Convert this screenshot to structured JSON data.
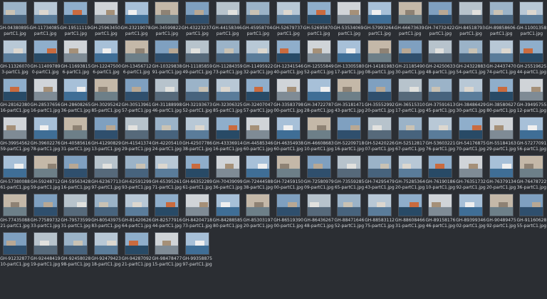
{
  "files": [
    {
      "line1": "GH-04380895-",
      "line2": "partC1.jpg"
    },
    {
      "line1": "GH-11734085-",
      "line2": "partC1.jpg"
    },
    {
      "line1": "GH-19511119-",
      "line2": "partC1.jpg"
    },
    {
      "line1": "GH-25963450-",
      "line2": "partC1.jpg"
    },
    {
      "line1": "GH-23219078-",
      "line2": "partC1.jpg"
    },
    {
      "line1": "GH-34599822-",
      "line2": "partC1.jpg"
    },
    {
      "line1": "GH-43223237-",
      "line2": "partC1.jpg"
    },
    {
      "line1": "GH-44158346-",
      "line2": "partC1.jpg"
    },
    {
      "line1": "GH-45958704-",
      "line2": "partC1.jpg"
    },
    {
      "line1": "GH-52679737-",
      "line2": "partC1.jpg"
    },
    {
      "line1": "GH-52695870-",
      "line2": "partC1.jpg"
    },
    {
      "line1": "GH-53534069-",
      "line2": "partC1.jpg"
    },
    {
      "line1": "GH-57993264-",
      "line2": "partC1.jpg"
    },
    {
      "line1": "GH-66673639-",
      "line2": "partC1.jpg"
    },
    {
      "line1": "GH-74732422-",
      "line2": "partC1.jpg"
    },
    {
      "line1": "GH-84518793-",
      "line2": "partC1.jpg"
    },
    {
      "line1": "GH-89858606-",
      "line2": "partC1.jpg"
    },
    {
      "line1": "GH-11001358",
      "line2": "partC1.jpg"
    },
    {
      "line1": "GH-11326070",
      "line2": "3-partC1.jpg"
    },
    {
      "line1": "GH-11409789",
      "line2": "0-partC1.jpg"
    },
    {
      "line1": "GH-11693815",
      "line2": "6-partC1.jpg"
    },
    {
      "line1": "GH-12247500",
      "line2": "6-partC1.jpg"
    },
    {
      "line1": "GH-13456712",
      "line2": "6-partC1.jpg"
    },
    {
      "line1": "GH-10329838",
      "line2": "91-partC1.jpg"
    },
    {
      "line1": "GH-11185859",
      "line2": "49-partC1.jpg"
    },
    {
      "line1": "GH-11284359",
      "line2": "73-partC1.jpg"
    },
    {
      "line1": "GH-11495922",
      "line2": "32-partC1.jpg"
    },
    {
      "line1": "GH-12341546",
      "line2": "40-partC1.jpg"
    },
    {
      "line1": "GH-12555849",
      "line2": "52-partC1.jpg"
    },
    {
      "line1": "GH-13305580",
      "line2": "17-partC1.jpg"
    },
    {
      "line1": "GH-14181983",
      "line2": "08-partC1.jpg"
    },
    {
      "line1": "GH-21185490",
      "line2": "30-partC1.jpg"
    },
    {
      "line1": "GH-24250633",
      "line2": "48-partC1.jpg"
    },
    {
      "line1": "GH-24322883",
      "line2": "54-partC1.jpg"
    },
    {
      "line1": "GH-24437470",
      "line2": "74-partC1.jpg"
    },
    {
      "line1": "GH-25519625",
      "line2": "44-partC1.jpg"
    },
    {
      "line1": "GH-28162380",
      "line2": "16-partC1.jpg"
    },
    {
      "line1": "GH-28537656",
      "line2": "16-partC1.jpg"
    },
    {
      "line1": "GH-28608265",
      "line2": "36-partC1.jpg"
    },
    {
      "line1": "GH-30295242",
      "line2": "85-partC1.jpg"
    },
    {
      "line1": "GH-30513961",
      "line2": "57-partC1.jpg"
    },
    {
      "line1": "GH-31188998",
      "line2": "46-partC1.jpg"
    },
    {
      "line1": "GH-32193673",
      "line2": "52-partC1.jpg"
    },
    {
      "line1": "GH-32306325",
      "line2": "85-partC1.jpg"
    },
    {
      "line1": "GH-32407047",
      "line2": "57-partC1.jpg"
    },
    {
      "line1": "GH-33583798",
      "line2": "00-partC1.jpg"
    },
    {
      "line1": "GH-34722787",
      "line2": "28-partC1.jpg"
    },
    {
      "line1": "GH-35181471",
      "line2": "43-partC1.jpg"
    },
    {
      "line1": "GH-35552992",
      "line2": "20-partC1.jpg"
    },
    {
      "line1": "GH-36515310",
      "line2": "17-partC1.jpg"
    },
    {
      "line1": "GH-37591613",
      "line2": "45-partC1.jpg"
    },
    {
      "line1": "GH-38486429",
      "line2": "30-partC1.jpg"
    },
    {
      "line1": "GH-38580627",
      "line2": "80-partC1.jpg"
    },
    {
      "line1": "GH-39495755",
      "line2": "12-partC1.jpg"
    },
    {
      "line1": "GH-39954562",
      "line2": "59-partC1.jpg"
    },
    {
      "line1": "GH-39602276",
      "line2": "78-partC1.jpg"
    },
    {
      "line1": "GH-40585616",
      "line2": "31-partC1.jpg"
    },
    {
      "line1": "GH-41290829",
      "line2": "13-partC1.jpg"
    },
    {
      "line1": "GH-41541374",
      "line2": "29-partC1.jpg"
    },
    {
      "line1": "GH-42205410",
      "line2": "24-partC1.jpg"
    },
    {
      "line1": "GH-42507786",
      "line2": "38-partC1.jpg"
    },
    {
      "line1": "GH-43336914",
      "line2": "16-partC1.jpg"
    },
    {
      "line1": "GH-44585346",
      "line2": "60-partC1.jpg"
    },
    {
      "line1": "GH-46354938",
      "line2": "60-partC1.jpg"
    },
    {
      "line1": "GH-46608683",
      "line2": "10-partC1.jpg"
    },
    {
      "line1": "GH-52209718",
      "line2": "16-partC1.jpg"
    },
    {
      "line1": "GH-52420226",
      "line2": "07-partC1.jpg"
    },
    {
      "line1": "GH-52512817",
      "line2": "67-partC1.jpg"
    },
    {
      "line1": "GH-53603221",
      "line2": "76-partC1.jpg"
    },
    {
      "line1": "GH-54176875",
      "line2": "70-partC1.jpg"
    },
    {
      "line1": "GH-55184163",
      "line2": "29-partC1.jpg"
    },
    {
      "line1": "GH-57277091",
      "line2": "56-partC1.jpg"
    },
    {
      "line1": "GH-57380088",
      "line2": "61-partC1.jpg"
    },
    {
      "line1": "GH-59248712",
      "line2": "59-partC1.jpg"
    },
    {
      "line1": "GH-59563428",
      "line2": "16-partC1.jpg"
    },
    {
      "line1": "GH-62367713",
      "line2": "97-partC1.jpg"
    },
    {
      "line1": "GH-62591299",
      "line2": "93-partC1.jpg"
    },
    {
      "line1": "GH-65395261",
      "line2": "71-partC1.jpg"
    },
    {
      "line1": "GH-66352289",
      "line2": "61-partC1.jpg"
    },
    {
      "line1": "GH-70439099",
      "line2": "36-partC1.jpg"
    },
    {
      "line1": "GH-72444588",
      "line2": "38-partC1.jpg"
    },
    {
      "line1": "GH-72459150",
      "line2": "00-partC1.jpg"
    },
    {
      "line1": "GH-72580979",
      "line2": "09-partC1.jpg"
    },
    {
      "line1": "GH-73559285",
      "line2": "65-partC1.jpg"
    },
    {
      "line1": "GH-74295479",
      "line2": "43-partC1.jpg"
    },
    {
      "line1": "GH-75285364",
      "line2": "20-partC1.jpg"
    },
    {
      "line1": "GH-76190186",
      "line2": "10-partC1.jpg"
    },
    {
      "line1": "GH-76351732",
      "line2": "92-partC1.jpg"
    },
    {
      "line1": "GH-76379134",
      "line2": "20-partC1.jpg"
    },
    {
      "line1": "GH-76478722",
      "line2": "36-partC1.jpg"
    },
    {
      "line1": "GH-77435088",
      "line2": "21-partC1.jpg"
    },
    {
      "line1": "GH-77589732",
      "line2": "33-partC1.jpg"
    },
    {
      "line1": "GH-79573599",
      "line2": "31-partC1.jpg"
    },
    {
      "line1": "GH-80543975",
      "line2": "83-partC1.jpg"
    },
    {
      "line1": "GH-81420626",
      "line2": "64-partC1.jpg"
    },
    {
      "line1": "GH-82577916",
      "line2": "44-partC1.jpg"
    },
    {
      "line1": "GH-84204718",
      "line2": "73-partC1.jpg"
    },
    {
      "line1": "GH-84288585",
      "line2": "80-partC1.jpg"
    },
    {
      "line1": "GH-85303197",
      "line2": "20-partC1.jpg"
    },
    {
      "line1": "GH-86519390",
      "line2": "00-partC1.jpg"
    },
    {
      "line1": "GH-86436267",
      "line2": "48-partC1.jpg"
    },
    {
      "line1": "GH-88471646",
      "line2": "52-partC1.jpg"
    },
    {
      "line1": "GH-88583112",
      "line2": "75-partC1.jpg"
    },
    {
      "line1": "GH-88608466",
      "line2": "31-partC1.jpg"
    },
    {
      "line1": "GH-89158176",
      "line2": "46-partC1.jpg"
    },
    {
      "line1": "GH-89399346",
      "line2": "02-partC1.jpg"
    },
    {
      "line1": "GH-90489475",
      "line2": "92-partC1.jpg"
    },
    {
      "line1": "GH-91160628",
      "line2": "55-partC1.jpg"
    },
    {
      "line1": "GH-91232877",
      "line2": "10-partC1.jpg"
    },
    {
      "line1": "GH-92448419",
      "line2": "19-partC1.jpg"
    },
    {
      "line1": "GH-92458028",
      "line2": "98-partC1.jpg"
    },
    {
      "line1": "GH-92479423",
      "line2": "18-partC1.jpg"
    },
    {
      "line1": "GH-94287092",
      "line2": "21-partC1.jpg"
    },
    {
      "line1": "GH-98478477",
      "line2": "15-partC1.jpg"
    },
    {
      "line1": "GH-99358875",
      "line2": "97-partC1.jpg"
    }
  ]
}
